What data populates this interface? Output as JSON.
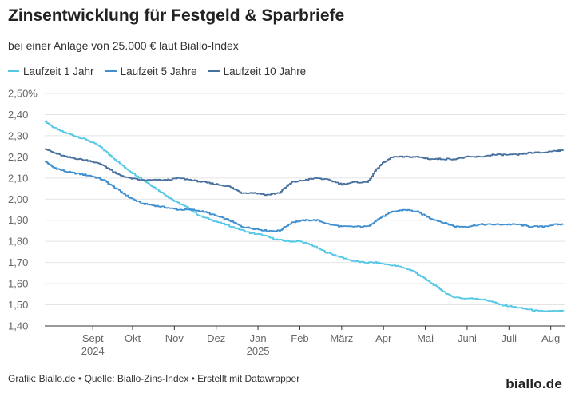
{
  "header": {
    "title": "Zinsentwicklung für Festgeld & Sparbriefe",
    "subtitle": "bei einer Anlage von 25.000 € laut Biallo-Index"
  },
  "footer": {
    "credit": "Grafik: Biallo.de • Quelle: Biallo-Zins-Index • Erstellt mit Datawrapper",
    "logo": "biallo.de"
  },
  "colors": {
    "series1": "#55c8e6",
    "series2": "#3f8fd0",
    "series3": "#47709e",
    "grid": "#e4e4e4",
    "axis": "#333333"
  },
  "chart_data": {
    "type": "line",
    "title": "Zinsentwicklung für Festgeld & Sparbriefe",
    "subtitle": "bei einer Anlage von 25.000 € laut Biallo-Index",
    "xlabel": "",
    "ylabel": "",
    "ylim": [
      1.4,
      2.5
    ],
    "y_ticks": [
      1.4,
      1.5,
      1.6,
      1.7,
      1.8,
      1.9,
      2.0,
      2.1,
      2.2,
      2.3,
      2.4,
      2.5
    ],
    "y_tick_labels": [
      "1,40",
      "1,50",
      "1,60",
      "1,70",
      "1,80",
      "1,90",
      "2,00",
      "2,10",
      "2,20",
      "2,30",
      "2,40",
      "2,50%"
    ],
    "x_range": [
      0,
      12.45
    ],
    "x_unit": "months since Aug 2024",
    "x_ticks": [
      {
        "x": 1.15,
        "label": "Sept",
        "sub": "2024"
      },
      {
        "x": 2.1,
        "label": "Okt",
        "sub": ""
      },
      {
        "x": 3.1,
        "label": "Nov",
        "sub": ""
      },
      {
        "x": 4.1,
        "label": "Dez",
        "sub": ""
      },
      {
        "x": 5.1,
        "label": "Jan",
        "sub": "2025"
      },
      {
        "x": 6.1,
        "label": "Feb",
        "sub": ""
      },
      {
        "x": 7.1,
        "label": "März",
        "sub": ""
      },
      {
        "x": 8.1,
        "label": "Apr",
        "sub": ""
      },
      {
        "x": 9.1,
        "label": "Mai",
        "sub": ""
      },
      {
        "x": 10.1,
        "label": "Juni",
        "sub": ""
      },
      {
        "x": 11.1,
        "label": "Juli",
        "sub": ""
      },
      {
        "x": 12.1,
        "label": "Aug",
        "sub": ""
      }
    ],
    "legend_position": "top-left",
    "grid": true,
    "series": [
      {
        "name": "Laufzeit 1 Jahr",
        "color": "#55c8e6",
        "x": [
          0,
          0.2,
          0.4,
          0.7,
          1.0,
          1.3,
          1.6,
          1.9,
          2.2,
          2.5,
          2.8,
          3.1,
          3.4,
          3.7,
          4.0,
          4.3,
          4.6,
          4.9,
          5.2,
          5.5,
          5.8,
          6.1,
          6.4,
          6.7,
          7.0,
          7.3,
          7.6,
          7.9,
          8.2,
          8.5,
          8.8,
          9.1,
          9.4,
          9.7,
          10.0,
          10.3,
          10.6,
          10.9,
          11.2,
          11.5,
          11.8,
          12.1,
          12.4
        ],
        "values": [
          2.37,
          2.34,
          2.32,
          2.3,
          2.28,
          2.25,
          2.2,
          2.15,
          2.11,
          2.07,
          2.03,
          1.99,
          1.96,
          1.92,
          1.9,
          1.88,
          1.86,
          1.84,
          1.83,
          1.81,
          1.8,
          1.8,
          1.78,
          1.75,
          1.73,
          1.71,
          1.7,
          1.7,
          1.69,
          1.68,
          1.66,
          1.62,
          1.58,
          1.54,
          1.53,
          1.53,
          1.52,
          1.5,
          1.49,
          1.48,
          1.47,
          1.47,
          1.47
        ]
      },
      {
        "name": "Laufzeit 5 Jahre",
        "color": "#3f8fd0",
        "x": [
          0,
          0.2,
          0.5,
          0.8,
          1.1,
          1.4,
          1.7,
          2.0,
          2.3,
          2.6,
          2.9,
          3.2,
          3.5,
          3.8,
          4.1,
          4.4,
          4.7,
          5.0,
          5.3,
          5.6,
          5.9,
          6.2,
          6.5,
          6.8,
          7.1,
          7.4,
          7.7,
          8.0,
          8.3,
          8.6,
          8.9,
          9.2,
          9.5,
          9.8,
          10.1,
          10.4,
          10.7,
          11.0,
          11.3,
          11.6,
          11.9,
          12.2,
          12.4
        ],
        "values": [
          2.18,
          2.15,
          2.13,
          2.12,
          2.11,
          2.09,
          2.05,
          2.01,
          1.98,
          1.97,
          1.96,
          1.95,
          1.95,
          1.94,
          1.92,
          1.9,
          1.87,
          1.86,
          1.85,
          1.85,
          1.89,
          1.9,
          1.9,
          1.88,
          1.87,
          1.87,
          1.87,
          1.91,
          1.94,
          1.95,
          1.94,
          1.91,
          1.89,
          1.87,
          1.87,
          1.88,
          1.88,
          1.88,
          1.88,
          1.87,
          1.87,
          1.88,
          1.88
        ]
      },
      {
        "name": "Laufzeit 10 Jahre",
        "color": "#47709e",
        "x": [
          0,
          0.2,
          0.5,
          0.8,
          1.1,
          1.4,
          1.7,
          2.0,
          2.3,
          2.6,
          2.9,
          3.2,
          3.5,
          3.8,
          4.1,
          4.4,
          4.7,
          5.0,
          5.3,
          5.6,
          5.9,
          6.2,
          6.5,
          6.8,
          7.1,
          7.4,
          7.7,
          8.0,
          8.3,
          8.6,
          8.9,
          9.2,
          9.5,
          9.8,
          10.1,
          10.4,
          10.7,
          11.0,
          11.3,
          11.6,
          11.9,
          12.2,
          12.4
        ],
        "values": [
          2.24,
          2.22,
          2.2,
          2.19,
          2.18,
          2.16,
          2.12,
          2.1,
          2.09,
          2.09,
          2.09,
          2.1,
          2.09,
          2.08,
          2.07,
          2.06,
          2.03,
          2.03,
          2.02,
          2.03,
          2.08,
          2.09,
          2.1,
          2.09,
          2.07,
          2.08,
          2.08,
          2.16,
          2.2,
          2.2,
          2.2,
          2.19,
          2.19,
          2.19,
          2.2,
          2.2,
          2.21,
          2.21,
          2.21,
          2.22,
          2.22,
          2.23,
          2.23
        ]
      }
    ]
  }
}
